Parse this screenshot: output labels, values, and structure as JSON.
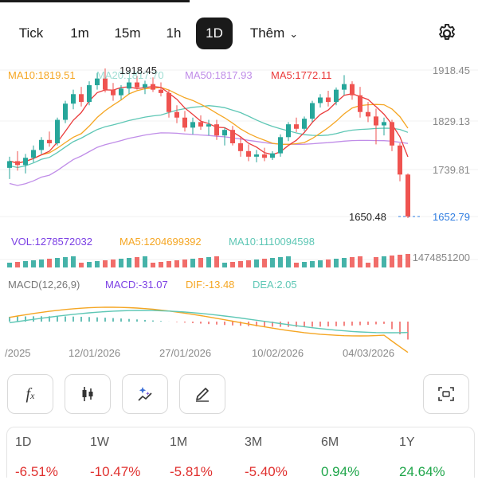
{
  "tabs": [
    {
      "label": "Tick"
    },
    {
      "label": "1m"
    },
    {
      "label": "15m"
    },
    {
      "label": "1h"
    },
    {
      "label": "1D",
      "active": true
    },
    {
      "label": "Thêm"
    }
  ],
  "price_chart": {
    "legend": {
      "ma10": "MA10:1819.51",
      "ma20": "MA20:1817.70",
      "ma50": "MA50:1817.93",
      "ma5": "MA5:1772.11"
    },
    "y_ticks": [
      "1918.45",
      "1829.13",
      "1739.81"
    ],
    "last_price": "1652.79",
    "high_label": "1918.45",
    "low_label": "1650.48",
    "colors": {
      "up": "#26a69a",
      "down": "#ef5350",
      "ma5": "#ea3b3b",
      "ma10": "#f5a623",
      "ma20": "#5ec7b5",
      "ma50": "#c08de8",
      "last": "#2f7de1"
    }
  },
  "volume": {
    "vol": "VOL:1278572032",
    "ma5": "MA5:1204699392",
    "ma10": "MA10:1110094598",
    "y_tick": "1474851200"
  },
  "macd": {
    "title": "MACD(12,26,9)",
    "macd": "MACD:-31.07",
    "dif": "DIF:-13.48",
    "dea": "DEA:2.05"
  },
  "x_ticks": [
    "/2025",
    "12/01/2026",
    "27/01/2026",
    "10/02/2026",
    "04/03/2026"
  ],
  "chart_data": {
    "type": "candlestick",
    "ohlc_approx": [
      [
        1740,
        1760,
        1720,
        1752
      ],
      [
        1752,
        1770,
        1735,
        1745
      ],
      [
        1745,
        1765,
        1730,
        1758
      ],
      [
        1758,
        1780,
        1750,
        1772
      ],
      [
        1772,
        1795,
        1765,
        1790
      ],
      [
        1790,
        1805,
        1778,
        1784
      ],
      [
        1784,
        1830,
        1780,
        1826
      ],
      [
        1826,
        1860,
        1820,
        1855
      ],
      [
        1855,
        1880,
        1845,
        1872
      ],
      [
        1872,
        1885,
        1850,
        1858
      ],
      [
        1858,
        1895,
        1852,
        1888
      ],
      [
        1888,
        1910,
        1880,
        1900
      ],
      [
        1900,
        1918,
        1875,
        1880
      ],
      [
        1880,
        1892,
        1860,
        1870
      ],
      [
        1870,
        1888,
        1862,
        1882
      ],
      [
        1882,
        1900,
        1872,
        1893
      ],
      [
        1893,
        1905,
        1880,
        1884
      ],
      [
        1884,
        1896,
        1872,
        1890
      ],
      [
        1890,
        1902,
        1876,
        1880
      ],
      [
        1880,
        1893,
        1868,
        1874
      ],
      [
        1874,
        1880,
        1830,
        1840
      ],
      [
        1840,
        1852,
        1820,
        1830
      ],
      [
        1830,
        1842,
        1805,
        1812
      ],
      [
        1812,
        1830,
        1800,
        1822
      ],
      [
        1822,
        1834,
        1808,
        1814
      ],
      [
        1814,
        1826,
        1798,
        1818
      ],
      [
        1818,
        1826,
        1790,
        1798
      ],
      [
        1798,
        1812,
        1780,
        1808
      ],
      [
        1808,
        1815,
        1780,
        1784
      ],
      [
        1784,
        1795,
        1760,
        1770
      ],
      [
        1770,
        1782,
        1752,
        1760
      ],
      [
        1760,
        1772,
        1750,
        1764
      ],
      [
        1764,
        1776,
        1752,
        1758
      ],
      [
        1758,
        1770,
        1754,
        1766
      ],
      [
        1766,
        1800,
        1760,
        1795
      ],
      [
        1795,
        1822,
        1788,
        1818
      ],
      [
        1818,
        1830,
        1804,
        1810
      ],
      [
        1810,
        1832,
        1806,
        1828
      ],
      [
        1828,
        1860,
        1822,
        1856
      ],
      [
        1856,
        1872,
        1848,
        1866
      ],
      [
        1866,
        1878,
        1850,
        1858
      ],
      [
        1858,
        1884,
        1852,
        1880
      ],
      [
        1880,
        1906,
        1870,
        1890
      ],
      [
        1890,
        1895,
        1862,
        1870
      ],
      [
        1870,
        1885,
        1830,
        1840
      ],
      [
        1840,
        1858,
        1822,
        1832
      ],
      [
        1832,
        1846,
        1782,
        1816
      ],
      [
        1816,
        1830,
        1798,
        1822
      ],
      [
        1822,
        1826,
        1770,
        1780
      ],
      [
        1780,
        1784,
        1716,
        1728
      ],
      [
        1728,
        1730,
        1650,
        1653
      ]
    ]
  },
  "tools": [
    {
      "name": "indicator-fx-button",
      "glyph": "fx"
    },
    {
      "name": "candle-type-button",
      "glyph": "candle"
    },
    {
      "name": "ai-magic-button",
      "glyph": "sparkle"
    },
    {
      "name": "draw-pencil-button",
      "glyph": "pencil"
    },
    {
      "name": "screenshot-button",
      "glyph": "scan"
    }
  ],
  "performance": [
    {
      "label": "1D",
      "value": "-6.51%",
      "trend": "neg"
    },
    {
      "label": "1W",
      "value": "-10.47%",
      "trend": "neg"
    },
    {
      "label": "1M",
      "value": "-5.81%",
      "trend": "neg"
    },
    {
      "label": "3M",
      "value": "-5.40%",
      "trend": "neg"
    },
    {
      "label": "6M",
      "value": "0.94%",
      "trend": "pos"
    },
    {
      "label": "1Y",
      "value": "24.64%",
      "trend": "pos"
    }
  ]
}
